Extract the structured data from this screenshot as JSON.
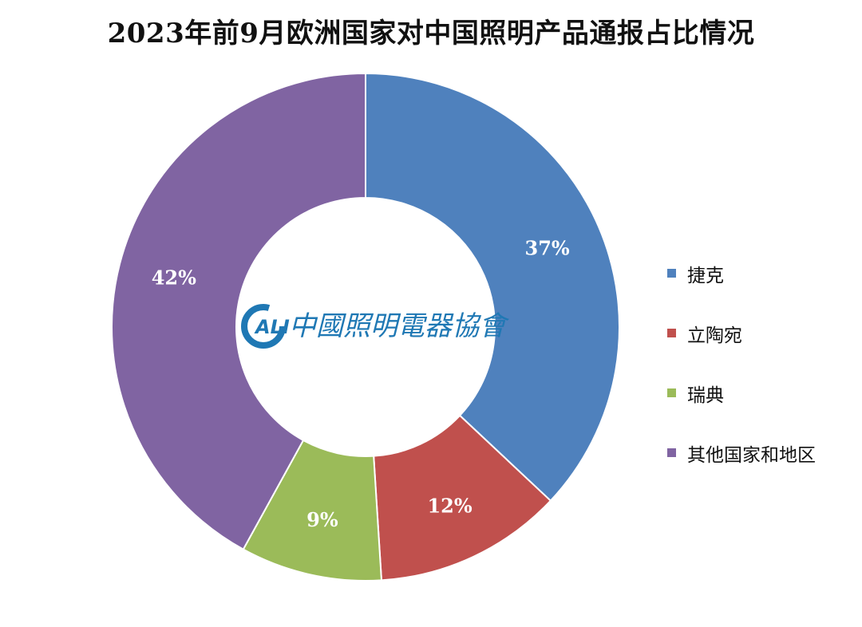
{
  "chart_data": {
    "type": "donut",
    "title": "2023年前9月欧洲国家对中国照明产品通报占比情况",
    "unit": "%",
    "legend_position": "right",
    "series": [
      {
        "name": "捷克",
        "value": 37,
        "label": "37%",
        "color": "#4f81bd"
      },
      {
        "name": "立陶宛",
        "value": 12,
        "label": "12%",
        "color": "#c0504d"
      },
      {
        "name": "瑞典",
        "value": 9,
        "label": "9%",
        "color": "#9bbb59"
      },
      {
        "name": "其他国家和地区",
        "value": 42,
        "label": "42%",
        "color": "#8064a2"
      }
    ]
  },
  "logo": {
    "mark": "ALI",
    "text": "中國照明電器協會"
  }
}
